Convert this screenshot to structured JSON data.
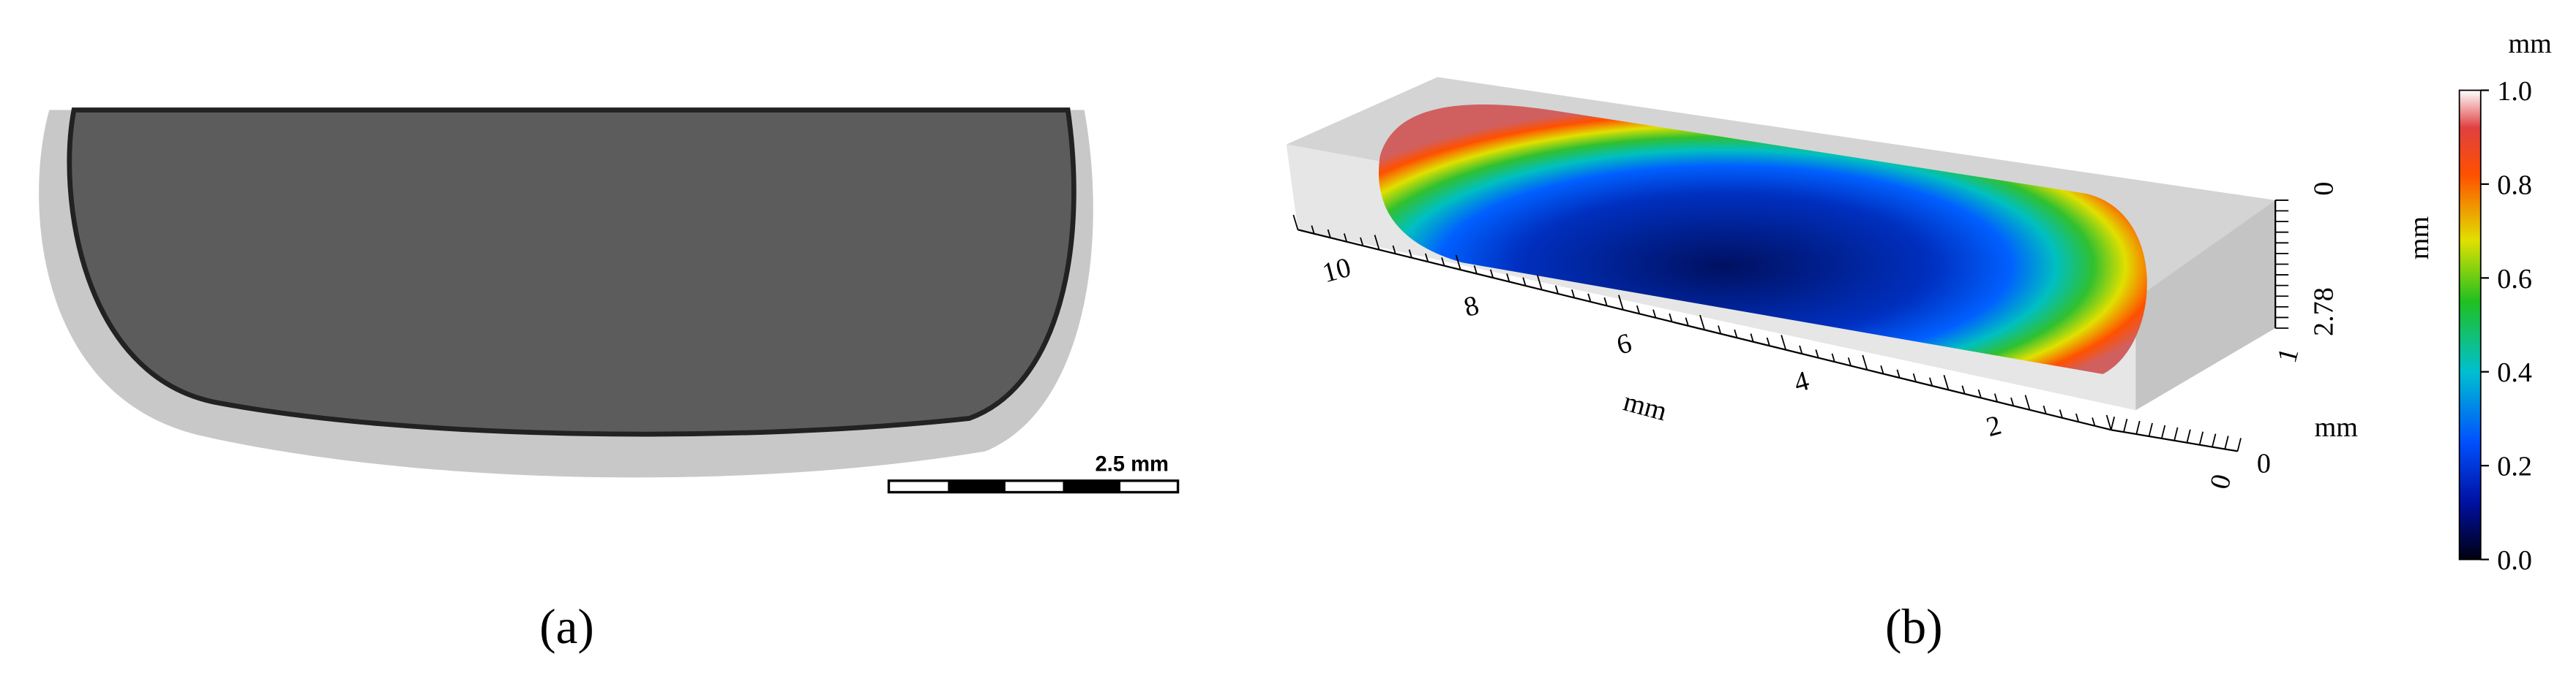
{
  "panel_a": {
    "scale_bar": "2.5 mm",
    "caption": "(a)"
  },
  "panel_b": {
    "x_axis": {
      "label": "mm",
      "ticks": [
        "10",
        "8",
        "6",
        "4",
        "2"
      ]
    },
    "side_labels": [
      "0",
      "2.78",
      "1",
      "mm",
      "0",
      "0"
    ],
    "colorbar": {
      "title": "mm",
      "label": "mm",
      "lim": [
        0,
        1
      ],
      "ticks": [
        {
          "value": 1,
          "label": "1.0"
        },
        {
          "value": 0.8,
          "label": "0.8"
        },
        {
          "value": 0.6,
          "label": "0.6"
        },
        {
          "value": 0.4,
          "label": "0.4"
        },
        {
          "value": 0.2,
          "label": "0.2"
        },
        {
          "value": 0,
          "label": "0.0"
        }
      ]
    },
    "caption": "(b)"
  }
}
